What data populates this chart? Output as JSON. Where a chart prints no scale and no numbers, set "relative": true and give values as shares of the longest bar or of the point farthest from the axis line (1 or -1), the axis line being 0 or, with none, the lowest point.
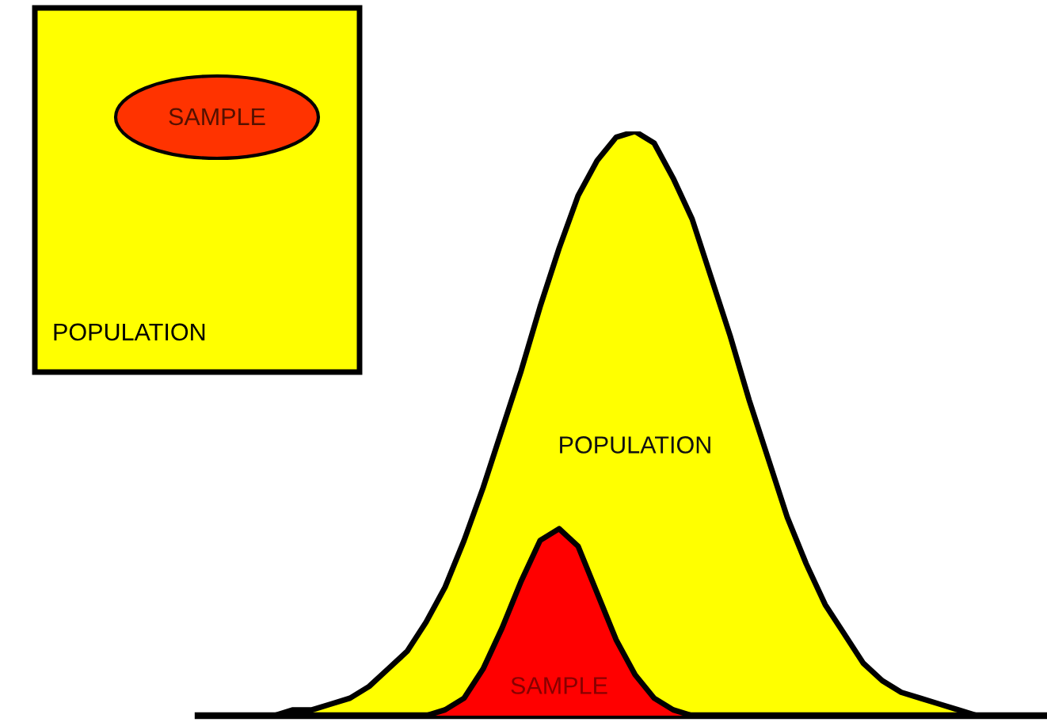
{
  "chart_data": {
    "type": "area",
    "relative": true,
    "categories": [
      null,
      null,
      null,
      null,
      null,
      null,
      null,
      null,
      null,
      null,
      null,
      null,
      null,
      null,
      null,
      null,
      null,
      null,
      null,
      null,
      null,
      null,
      null,
      null,
      null,
      null,
      null,
      null,
      null,
      null,
      null,
      null,
      null,
      null,
      null,
      null,
      null,
      null,
      null,
      null,
      null,
      null,
      null,
      null,
      null
    ],
    "series": [
      {
        "name": "POPULATION",
        "color": "#ffff00",
        "values": [
          null,
          null,
          null,
          null,
          0,
          0.01,
          0.01,
          0.02,
          0.03,
          0.05,
          0.08,
          0.11,
          0.16,
          0.22,
          0.3,
          0.39,
          0.49,
          0.59,
          0.7,
          0.8,
          0.89,
          0.95,
          0.99,
          1.0,
          0.98,
          0.92,
          0.85,
          0.75,
          0.65,
          0.54,
          0.44,
          0.34,
          0.26,
          0.19,
          0.14,
          0.09,
          0.06,
          0.04,
          0.03,
          0.02,
          0.01,
          0,
          null,
          null,
          null
        ]
      },
      {
        "name": "SAMPLE",
        "color": "#ff0000",
        "values": [
          null,
          null,
          null,
          null,
          null,
          null,
          null,
          null,
          null,
          null,
          null,
          null,
          0,
          0.01,
          0.03,
          0.08,
          0.15,
          0.23,
          0.3,
          0.32,
          0.29,
          0.21,
          0.13,
          0.07,
          0.03,
          0.01,
          0,
          null,
          null,
          null,
          null,
          null,
          null,
          null,
          null,
          null,
          null,
          null,
          null,
          null,
          null,
          null,
          null,
          null,
          null
        ]
      }
    ],
    "annotations": [
      "SAMPLE",
      "POPULATION"
    ],
    "legend": false,
    "marker": "none"
  }
}
